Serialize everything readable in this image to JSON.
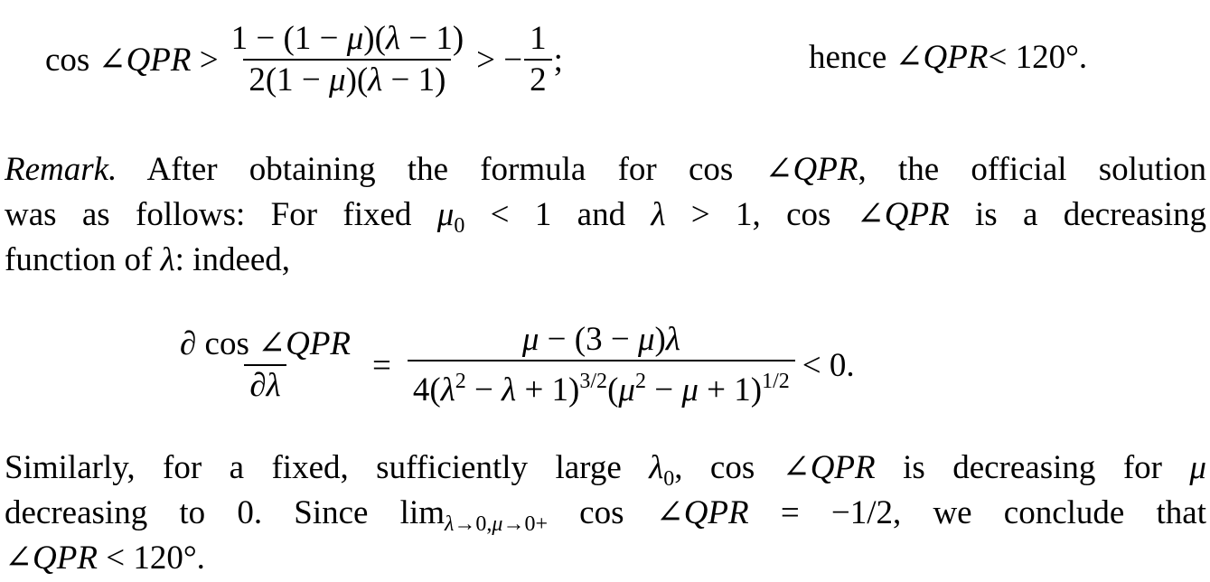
{
  "eq1": {
    "lhs": [
      [
        "cos ∠",
        "r"
      ],
      [
        "QPR",
        "i"
      ],
      [
        " >",
        "r"
      ]
    ],
    "num": [
      [
        "1 − (1 − ",
        "r"
      ],
      [
        "μ",
        "i"
      ],
      [
        ")(",
        "r"
      ],
      [
        "λ",
        "i"
      ],
      [
        " − 1)",
        "r"
      ]
    ],
    "den": [
      [
        "2(1 − ",
        "r"
      ],
      [
        "μ",
        "i"
      ],
      [
        ")(",
        "r"
      ],
      [
        "λ",
        "i"
      ],
      [
        " − 1)",
        "r"
      ]
    ],
    "mid": [
      [
        "> −",
        "r"
      ]
    ],
    "half_num": [
      [
        "1",
        "r"
      ]
    ],
    "half_den": [
      [
        "2",
        "r"
      ]
    ],
    "tail": [
      [
        ";",
        "r"
      ]
    ],
    "hence": [
      [
        "hence ∠",
        "r"
      ],
      [
        "QPR",
        "i"
      ],
      [
        " < 120°.",
        "r"
      ]
    ]
  },
  "para1": [
    [
      [
        "Remark.",
        "i"
      ],
      [
        " After obtaining the formula for cos ∠",
        "r"
      ],
      [
        "QPR",
        "i"
      ],
      [
        ", the official solution",
        "r"
      ]
    ],
    [
      [
        "was as follows: For fixed ",
        "r"
      ],
      [
        "μ",
        "i"
      ],
      [
        "0",
        "sub"
      ],
      [
        " < 1 and ",
        "r"
      ],
      [
        "λ",
        "i"
      ],
      [
        " > 1, cos ∠",
        "r"
      ],
      [
        "QPR",
        "i"
      ],
      [
        " is a decreasing",
        "r"
      ]
    ],
    [
      [
        "function of ",
        "r"
      ],
      [
        "λ",
        "i"
      ],
      [
        ": indeed,",
        "r"
      ]
    ]
  ],
  "eq2": {
    "lnum": [
      [
        "∂ cos ∠",
        "r"
      ],
      [
        "QPR",
        "i"
      ]
    ],
    "lden": [
      [
        "∂",
        "r"
      ],
      [
        "λ",
        "i"
      ]
    ],
    "eq": [
      [
        "=",
        "r"
      ]
    ],
    "rnum": [
      [
        "μ",
        "i"
      ],
      [
        " − (3 − ",
        "r"
      ],
      [
        "μ",
        "i"
      ],
      [
        ")",
        "r"
      ],
      [
        "λ",
        "i"
      ]
    ],
    "rden": [
      [
        "4(",
        "r"
      ],
      [
        "λ",
        "i"
      ],
      [
        "2",
        "sup"
      ],
      [
        " − ",
        "r"
      ],
      [
        "λ",
        "i"
      ],
      [
        " + 1)",
        "r"
      ],
      [
        "3/2",
        "sup"
      ],
      [
        "(",
        "r"
      ],
      [
        "μ",
        "i"
      ],
      [
        "2",
        "sup"
      ],
      [
        " − ",
        "r"
      ],
      [
        "μ",
        "i"
      ],
      [
        " + 1)",
        "r"
      ],
      [
        "1/2",
        "sup"
      ]
    ],
    "tail": [
      [
        "< 0.",
        "r"
      ]
    ]
  },
  "para2": [
    [
      [
        "Similarly, for a fixed, sufficiently large ",
        "r"
      ],
      [
        "λ",
        "i"
      ],
      [
        "0",
        "sub"
      ],
      [
        ", cos ∠",
        "r"
      ],
      [
        "QPR",
        "i"
      ],
      [
        " is decreasing for ",
        "r"
      ],
      [
        "μ",
        "i"
      ]
    ],
    [
      [
        "decreasing to 0. Since lim",
        "r"
      ],
      [
        "λ",
        "isub"
      ],
      [
        "→0,",
        "sub"
      ],
      [
        "μ",
        "isub"
      ],
      [
        "→0+",
        "sub"
      ],
      [
        " cos ∠",
        "r"
      ],
      [
        "QPR",
        "i"
      ],
      [
        " = −1/2, we conclude that",
        "r"
      ]
    ],
    [
      [
        "∠",
        "r"
      ],
      [
        "QPR",
        "i"
      ],
      [
        " < 120°.",
        "r"
      ]
    ]
  ]
}
